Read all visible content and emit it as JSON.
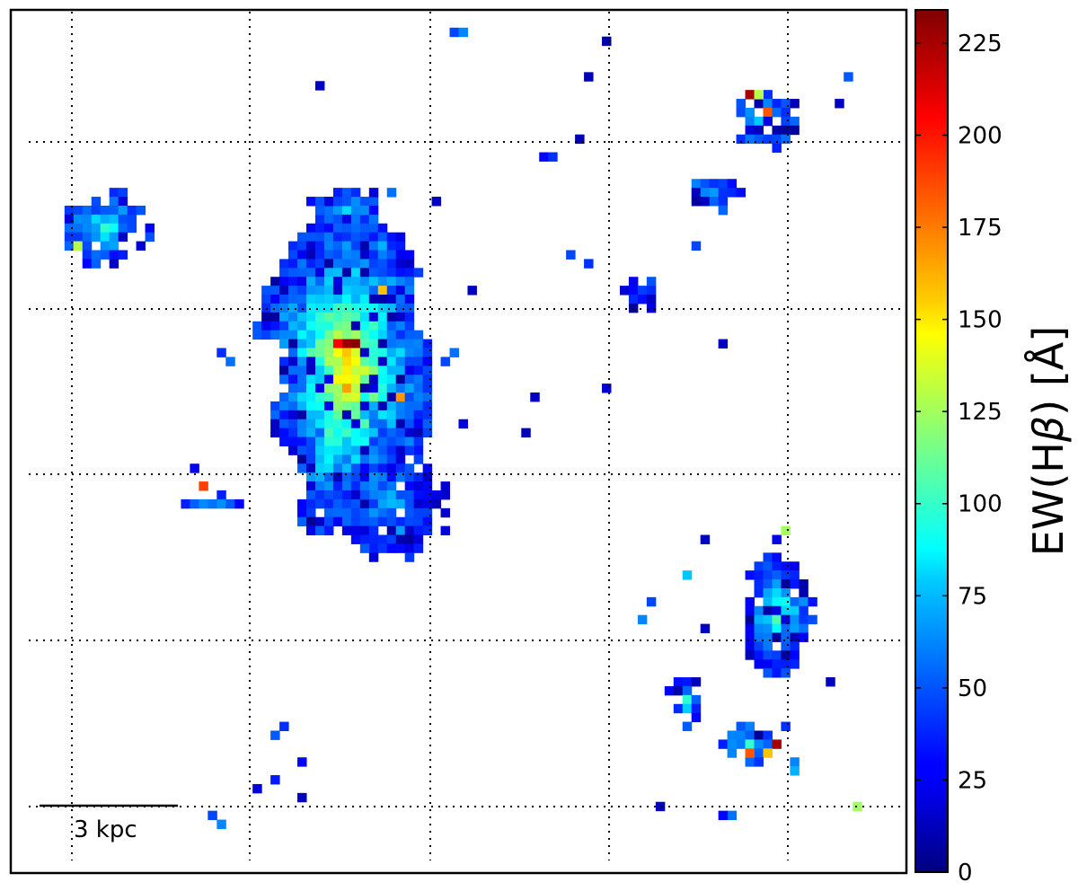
{
  "chart_data": {
    "type": "heatmap",
    "title": "",
    "xlabel": "",
    "ylabel": "",
    "grid": true,
    "colormap": "jet",
    "colorbar": {
      "label": "EW(Hβ) [Å]",
      "label_parts": {
        "prefix": "EW(H",
        "greek": "β",
        "suffix": ") [Å]"
      },
      "vmin": 0,
      "vmax": 234,
      "ticks": [
        0,
        25,
        50,
        75,
        100,
        125,
        150,
        175,
        200,
        225
      ]
    },
    "scale_bar": {
      "label": "3 kpc",
      "length_kpc": 3
    },
    "pixel_grid": {
      "cols": 100,
      "rows": 97
    },
    "blobs": [
      {
        "name": "main-clump",
        "col": 37,
        "row": 40,
        "rx": 9,
        "ry": 17,
        "base": 38,
        "peak": 160,
        "dens": 0.96,
        "seed": 11
      },
      {
        "name": "main-clump-lower",
        "col": 42,
        "row": 55,
        "rx": 7,
        "ry": 6,
        "base": 28,
        "peak": 70,
        "dens": 0.8,
        "seed": 12
      },
      {
        "name": "upper-left-group",
        "col": 10,
        "row": 24,
        "rx": 5,
        "ry": 4,
        "base": 40,
        "peak": 95,
        "dens": 0.78,
        "seed": 13
      },
      {
        "name": "upper-middle-streak",
        "col": 37,
        "row": 22,
        "rx": 4,
        "ry": 3,
        "base": 40,
        "peak": 80,
        "dens": 0.8,
        "seed": 14
      },
      {
        "name": "right-lower-clump",
        "col": 85,
        "row": 67,
        "rx": 4,
        "ry": 7,
        "base": 35,
        "peak": 110,
        "dens": 0.92,
        "seed": 15
      },
      {
        "name": "upper-right-group",
        "col": 84,
        "row": 12,
        "rx": 4,
        "ry": 3,
        "base": 40,
        "peak": 90,
        "dens": 0.82,
        "seed": 16
      },
      {
        "name": "upper-right-small",
        "col": 78,
        "row": 20,
        "rx": 3,
        "ry": 2,
        "base": 45,
        "peak": 60,
        "dens": 0.9,
        "seed": 17
      },
      {
        "name": "lower-right-chain-a",
        "col": 75,
        "row": 77,
        "rx": 2,
        "ry": 3,
        "base": 40,
        "peak": 85,
        "dens": 0.8,
        "seed": 18
      },
      {
        "name": "lower-right-chain-b",
        "col": 82,
        "row": 82,
        "rx": 3,
        "ry": 2,
        "base": 45,
        "peak": 95,
        "dens": 0.75,
        "seed": 19
      },
      {
        "name": "mid-right-small",
        "col": 70,
        "row": 31,
        "rx": 2,
        "ry": 2,
        "base": 38,
        "peak": 55,
        "dens": 0.85,
        "seed": 20
      },
      {
        "name": "left-small",
        "col": 22,
        "row": 55,
        "rx": 3,
        "ry": 1,
        "base": 40,
        "peak": 70,
        "dens": 0.9,
        "seed": 21
      }
    ],
    "hot_pixels": [
      {
        "col": 37,
        "row": 37,
        "value": 228
      },
      {
        "col": 38,
        "row": 37,
        "value": 232
      },
      {
        "col": 36,
        "row": 37,
        "value": 205
      },
      {
        "col": 37,
        "row": 38,
        "value": 160
      },
      {
        "col": 37,
        "row": 40,
        "value": 150
      },
      {
        "col": 37,
        "row": 42,
        "value": 168
      },
      {
        "col": 41,
        "row": 31,
        "value": 160
      },
      {
        "col": 43,
        "row": 43,
        "value": 170
      },
      {
        "col": 21,
        "row": 53,
        "value": 190
      },
      {
        "col": 82,
        "row": 9,
        "value": 225
      },
      {
        "col": 84,
        "row": 11,
        "value": 185
      },
      {
        "col": 83,
        "row": 9,
        "value": 130
      },
      {
        "col": 85,
        "row": 82,
        "value": 225
      },
      {
        "col": 82,
        "row": 83,
        "value": 185
      },
      {
        "col": 84,
        "row": 83,
        "value": 160
      },
      {
        "col": 94,
        "row": 89,
        "value": 125
      },
      {
        "col": 86,
        "row": 58,
        "value": 125
      },
      {
        "col": 7,
        "row": 26,
        "value": 130
      }
    ],
    "isolated_pixels": [
      {
        "col": 49,
        "row": 2,
        "value": 45
      },
      {
        "col": 50,
        "row": 2,
        "value": 60
      },
      {
        "col": 66,
        "row": 3,
        "value": 10
      },
      {
        "col": 64,
        "row": 7,
        "value": 12
      },
      {
        "col": 34,
        "row": 8,
        "value": 15
      },
      {
        "col": 93,
        "row": 7,
        "value": 50
      },
      {
        "col": 92,
        "row": 10,
        "value": 15
      },
      {
        "col": 63,
        "row": 14,
        "value": 12
      },
      {
        "col": 59,
        "row": 16,
        "value": 30
      },
      {
        "col": 60,
        "row": 16,
        "value": 40
      },
      {
        "col": 47,
        "row": 21,
        "value": 15
      },
      {
        "col": 40,
        "row": 20,
        "value": 20
      },
      {
        "col": 42,
        "row": 20,
        "value": 55
      },
      {
        "col": 41,
        "row": 26,
        "value": 70
      },
      {
        "col": 62,
        "row": 27,
        "value": 45
      },
      {
        "col": 64,
        "row": 28,
        "value": 40
      },
      {
        "col": 76,
        "row": 26,
        "value": 45
      },
      {
        "col": 51,
        "row": 31,
        "value": 15
      },
      {
        "col": 23,
        "row": 38,
        "value": 40
      },
      {
        "col": 24,
        "row": 39,
        "value": 55
      },
      {
        "col": 48,
        "row": 39,
        "value": 45
      },
      {
        "col": 49,
        "row": 38,
        "value": 55
      },
      {
        "col": 79,
        "row": 37,
        "value": 15
      },
      {
        "col": 66,
        "row": 42,
        "value": 20
      },
      {
        "col": 58,
        "row": 43,
        "value": 15
      },
      {
        "col": 50,
        "row": 46,
        "value": 20
      },
      {
        "col": 57,
        "row": 47,
        "value": 12
      },
      {
        "col": 20,
        "row": 51,
        "value": 25
      },
      {
        "col": 77,
        "row": 59,
        "value": 15
      },
      {
        "col": 75,
        "row": 63,
        "value": 75
      },
      {
        "col": 71,
        "row": 66,
        "value": 45
      },
      {
        "col": 70,
        "row": 68,
        "value": 60
      },
      {
        "col": 77,
        "row": 69,
        "value": 15
      },
      {
        "col": 91,
        "row": 75,
        "value": 15
      },
      {
        "col": 30,
        "row": 80,
        "value": 40
      },
      {
        "col": 29,
        "row": 81,
        "value": 50
      },
      {
        "col": 32,
        "row": 84,
        "value": 30
      },
      {
        "col": 29,
        "row": 86,
        "value": 35
      },
      {
        "col": 27,
        "row": 87,
        "value": 20
      },
      {
        "col": 32,
        "row": 88,
        "value": 15
      },
      {
        "col": 22,
        "row": 90,
        "value": 45
      },
      {
        "col": 23,
        "row": 91,
        "value": 60
      },
      {
        "col": 72,
        "row": 89,
        "value": 15
      },
      {
        "col": 80,
        "row": 90,
        "value": 55
      },
      {
        "col": 79,
        "row": 90,
        "value": 30
      },
      {
        "col": 87,
        "row": 84,
        "value": 60
      },
      {
        "col": 87,
        "row": 85,
        "value": 70
      },
      {
        "col": 86,
        "row": 80,
        "value": 40
      },
      {
        "col": 39,
        "row": 60,
        "value": 50
      },
      {
        "col": 43,
        "row": 58,
        "value": 65
      },
      {
        "col": 40,
        "row": 61,
        "value": 20
      },
      {
        "col": 42,
        "row": 60,
        "value": 30
      }
    ]
  }
}
